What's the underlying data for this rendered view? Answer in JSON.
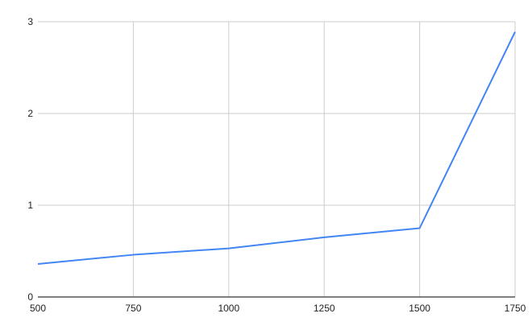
{
  "chart_data": {
    "type": "line",
    "title": "",
    "xlabel": "",
    "ylabel": "",
    "x": [
      500,
      750,
      1000,
      1250,
      1500,
      1750
    ],
    "series": [
      {
        "values": [
          0.36,
          0.46,
          0.53,
          0.65,
          0.75,
          2.89
        ],
        "color": "#4285f4"
      }
    ],
    "xlim": [
      500,
      1750
    ],
    "ylim": [
      0,
      3
    ],
    "x_ticks": [
      "500",
      "750",
      "1000",
      "1250",
      "1500",
      "1750"
    ],
    "y_ticks": [
      "0",
      "1",
      "2",
      "3"
    ],
    "grid": true,
    "legend": "none"
  }
}
